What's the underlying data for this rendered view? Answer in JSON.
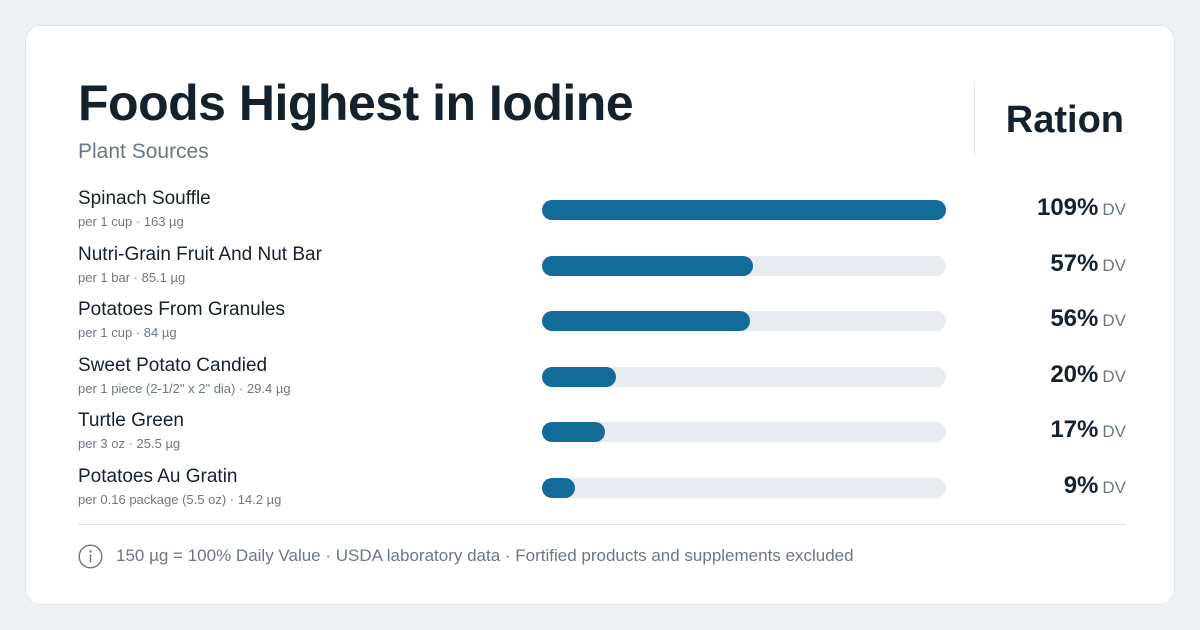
{
  "header": {
    "title": "Foods Highest in Iodine",
    "subtitle": "Plant Sources",
    "brand": "Ration"
  },
  "colors": {
    "bar_fill": "#136b9a",
    "bar_track": "#e8ecf0",
    "text_primary": "#16212e",
    "text_secondary": "#6b7783"
  },
  "chart_data": {
    "type": "bar",
    "orientation": "horizontal",
    "categories": [
      "Spinach Souffle",
      "Nutri-Grain Fruit And Nut Bar",
      "Potatoes From Granules",
      "Sweet Potato Candied",
      "Turtle Green",
      "Potatoes Au Gratin"
    ],
    "servings": [
      "per 1 cup · 163 µg",
      "per 1 bar · 85.1 µg",
      "per 1 cup · 84 µg",
      "per 1 piece (2-1/2\" x 2\" dia) · 29.4 µg",
      "per 3 oz · 25.5 µg",
      "per 0.16 package (5.5 oz) · 14.2 µg"
    ],
    "values": [
      109,
      57,
      56,
      20,
      17,
      9
    ],
    "value_labels": [
      "109%",
      "57%",
      "56%",
      "20%",
      "17%",
      "9%"
    ],
    "unit_label": "DV",
    "xlim": [
      0,
      109
    ],
    "grid": false
  },
  "footer": {
    "icon": "info-icon",
    "note": "150 µg = 100% Daily Value · USDA laboratory data · Fortified products and supplements excluded"
  }
}
